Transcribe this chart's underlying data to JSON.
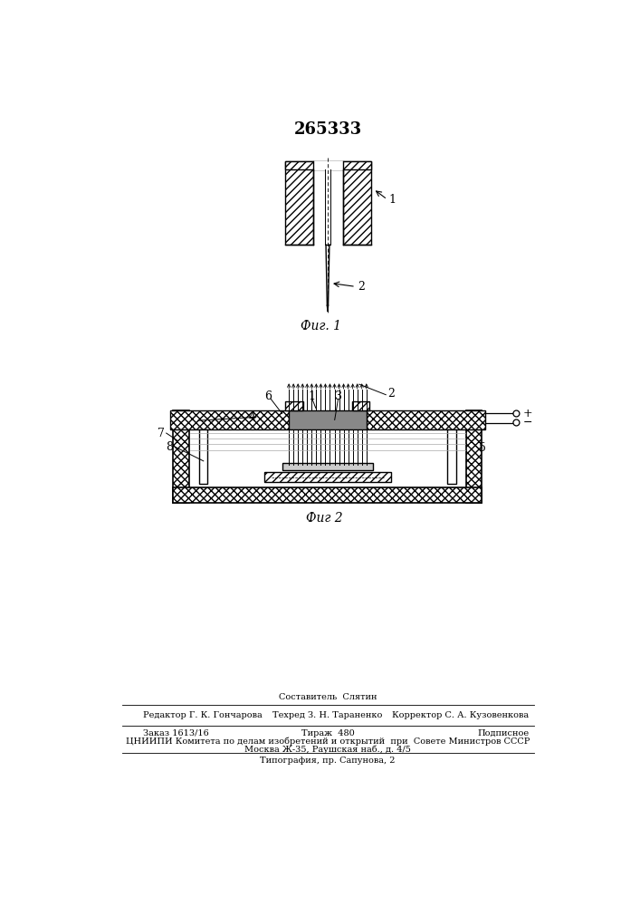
{
  "title_number": "265333",
  "fig1_caption": "Фиг. 1",
  "fig2_caption": "Фиг 2",
  "footer_composer": "Составитель  Слятин",
  "footer_editor": "Редактор Г. К. Гончарова",
  "footer_tech": "Техред З. Н. Тараненко",
  "footer_corrector": "Корректор С. А. Кузовенкова",
  "footer_order": "Заказ 1613/16",
  "footer_circulation": "Тираж  480",
  "footer_signed": "Подписное",
  "footer_org": "ЦНИИПИ Комитета по делам изобретений и открытий  при  Совете Министров СССР",
  "footer_address": "Москва Ж-35, Раушская наб., д. 4/5",
  "footer_print": "Типография, пр. Сапунова, 2",
  "bg_color": "#ffffff",
  "fg_color": "#000000"
}
